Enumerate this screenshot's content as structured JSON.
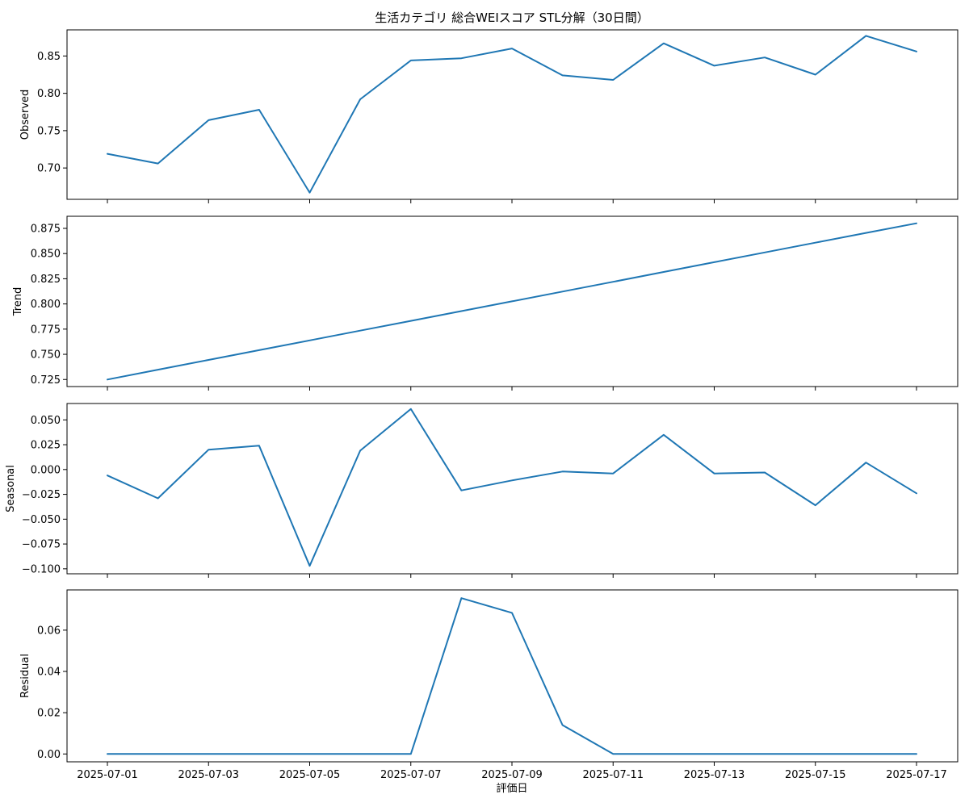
{
  "chart_data": {
    "type": "line",
    "title": "生活カテゴリ 総合WEIスコア STL分解（30日間）",
    "xlabel": "評価日",
    "x": [
      "2025-07-01",
      "2025-07-02",
      "2025-07-03",
      "2025-07-04",
      "2025-07-05",
      "2025-07-06",
      "2025-07-07",
      "2025-07-08",
      "2025-07-09",
      "2025-07-10",
      "2025-07-11",
      "2025-07-12",
      "2025-07-13",
      "2025-07-14",
      "2025-07-15",
      "2025-07-16",
      "2025-07-17"
    ],
    "x_tick_labels": [
      "2025-07-01",
      "2025-07-03",
      "2025-07-05",
      "2025-07-07",
      "2025-07-09",
      "2025-07-11",
      "2025-07-13",
      "2025-07-15",
      "2025-07-17"
    ],
    "line_color": "#1f77b4",
    "grid": false,
    "panels": [
      {
        "ylabel": "Observed",
        "ylim": [
          0.658,
          0.885
        ],
        "yticks": [
          0.7,
          0.75,
          0.8,
          0.85
        ],
        "ytick_labels": [
          "0.70",
          "0.75",
          "0.80",
          "0.85"
        ],
        "values": [
          0.719,
          0.706,
          0.764,
          0.778,
          0.667,
          0.792,
          0.844,
          0.847,
          0.86,
          0.824,
          0.818,
          0.867,
          0.837,
          0.848,
          0.825,
          0.877,
          0.856
        ]
      },
      {
        "ylabel": "Trend",
        "ylim": [
          0.718,
          0.887
        ],
        "yticks": [
          0.725,
          0.75,
          0.775,
          0.8,
          0.825,
          0.85,
          0.875
        ],
        "ytick_labels": [
          "0.725",
          "0.750",
          "0.775",
          "0.800",
          "0.825",
          "0.850",
          "0.875"
        ],
        "values": [
          0.725,
          0.7347,
          0.7444,
          0.7541,
          0.7638,
          0.7735,
          0.7832,
          0.7929,
          0.8026,
          0.8123,
          0.822,
          0.8317,
          0.8414,
          0.8511,
          0.8608,
          0.8705,
          0.88
        ]
      },
      {
        "ylabel": "Seasonal",
        "ylim": [
          -0.105,
          0.0665
        ],
        "yticks": [
          -0.1,
          -0.075,
          -0.05,
          -0.025,
          0.0,
          0.025,
          0.05
        ],
        "ytick_labels": [
          "−0.100",
          "−0.075",
          "−0.050",
          "−0.025",
          "0.000",
          "0.025",
          "0.050"
        ],
        "values": [
          -0.006,
          -0.029,
          0.02,
          0.024,
          -0.097,
          0.019,
          0.061,
          -0.021,
          -0.011,
          -0.002,
          -0.004,
          0.035,
          -0.004,
          -0.003,
          -0.036,
          0.007,
          -0.024
        ]
      },
      {
        "ylabel": "Residual",
        "ylim": [
          -0.0038,
          0.0795
        ],
        "yticks": [
          0.0,
          0.02,
          0.04,
          0.06
        ],
        "ytick_labels": [
          "0.00",
          "0.02",
          "0.04",
          "0.06"
        ],
        "values": [
          0,
          0,
          0,
          0,
          0,
          0,
          0,
          0.0755,
          0.0684,
          0.014,
          0,
          0,
          0,
          0,
          0,
          0,
          0
        ]
      }
    ]
  }
}
